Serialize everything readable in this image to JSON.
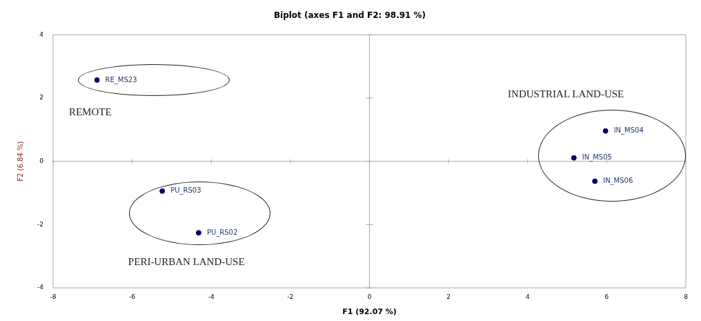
{
  "chart_data": {
    "type": "scatter",
    "title": "Biplot (axes F1 and F2: 98.91 %)",
    "xlabel": "F1 (92.07 %)",
    "ylabel": "F2 (6.84 %)",
    "xlim": [
      -8,
      8
    ],
    "xticks": [
      -8,
      -6,
      -4,
      -2,
      0,
      2,
      4,
      6,
      8
    ],
    "ylim": [
      -4,
      4
    ],
    "yticks": [
      -4,
      -2,
      0,
      2,
      4
    ],
    "legend": false,
    "marker": "circle",
    "series": [
      {
        "name": "RE_MS23",
        "color": "#000066",
        "x": [
          -6.89
        ],
        "values": [
          2.57
        ]
      },
      {
        "name": "PU_RS03",
        "color": "#000066",
        "x": [
          -5.24
        ],
        "values": [
          -0.94
        ]
      },
      {
        "name": "PU_RS02",
        "color": "#000066",
        "x": [
          -4.32
        ],
        "values": [
          -2.26
        ]
      },
      {
        "name": "IN_MS04",
        "color": "#000066",
        "x": [
          5.97
        ],
        "values": [
          0.96
        ]
      },
      {
        "name": "IN_MS05",
        "color": "#000066",
        "x": [
          5.17
        ],
        "values": [
          0.11
        ]
      },
      {
        "name": "IN_MS06",
        "color": "#000066",
        "x": [
          5.7
        ],
        "values": [
          -0.63
        ]
      }
    ],
    "annotations": [
      "REMOTE",
      "PERI-URBAN LAND-USE",
      "INDUSTRIAL LAND-USE"
    ]
  }
}
